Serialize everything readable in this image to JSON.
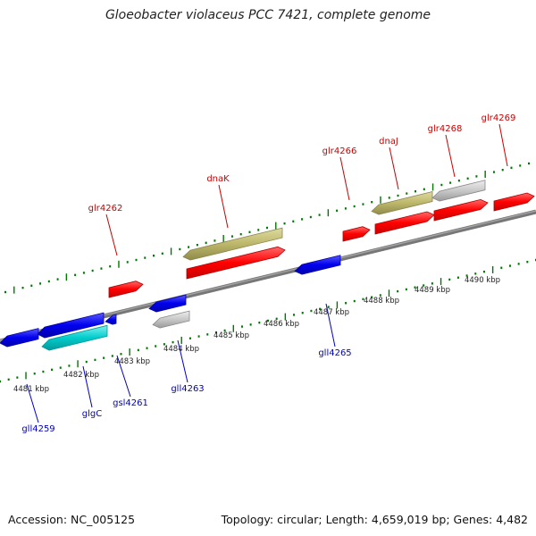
{
  "title": "Gloeobacter violaceus PCC 7421, complete genome",
  "footer": {
    "accession": "Accession: NC_005125",
    "stats": "Topology: circular; Length: 4,659,019 bp; Genes: 4,482"
  },
  "colors": {
    "forward_label": "#cc0000",
    "reverse_label": "#0000bb",
    "tick": "#007700",
    "backbone": "#777777",
    "red_gene": "#ff0000",
    "blue_gene": "#0000ee",
    "cyan_gene": "#00cccc",
    "khaki_gene": "#bdb76b",
    "grey_gene": "#c0c0c0"
  },
  "scale_labels": [
    "4481 kbp",
    "4482 kbp",
    "4483 kbp",
    "4484 kbp",
    "4485 kbp",
    "4486 kbp",
    "4487 kbp",
    "4488 kbp",
    "4489 kbp",
    "4490 kbp"
  ],
  "forward_gene_labels": [
    "glr4262",
    "dnaK",
    "glr4266",
    "dnaJ",
    "glr4268",
    "glr4269"
  ],
  "reverse_gene_labels": [
    "gll4259",
    "glgC",
    "gsl4261",
    "gll4263",
    "gll4265"
  ]
}
